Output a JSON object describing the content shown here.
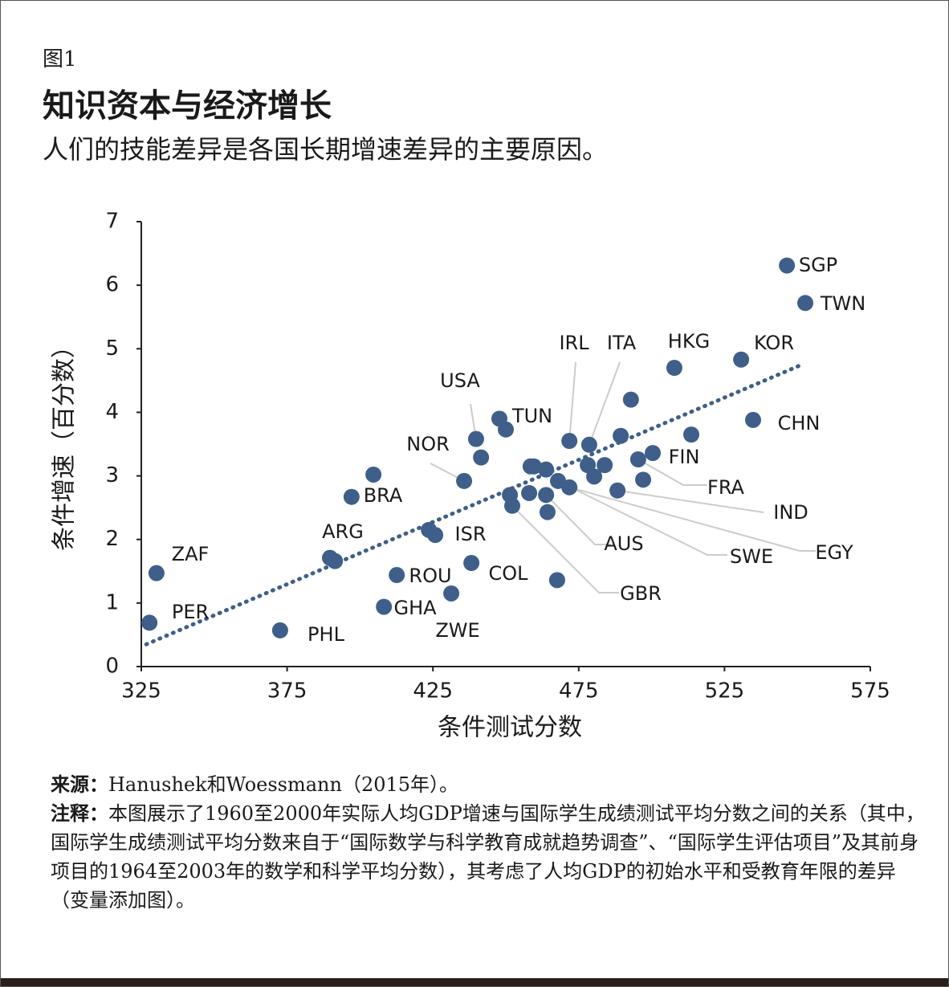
{
  "figure_label": "图1",
  "title": "知识资本与经济增长",
  "subtitle": "人们的技能差异是各国长期增速差异的主要原因。",
  "chart_data": {
    "type": "scatter",
    "xlabel": "条件测试分数",
    "ylabel": "条件增速（百分数）",
    "color": "#3f5f8a",
    "xlim": [
      325,
      575
    ],
    "xticks": [
      325,
      375,
      425,
      475,
      525,
      575
    ],
    "ylim": [
      0,
      7
    ],
    "yticks": [
      0,
      1,
      2,
      3,
      4,
      5,
      6,
      7
    ],
    "series": [
      {
        "x": [
          330.2,
          327.8,
          372.6,
          389.7,
          391.4,
          397.1,
          404.6,
          412.6,
          408.2,
          423.6,
          425.8,
          431.3,
          438.2,
          435.7,
          439.8,
          441.5,
          447.8,
          450.0,
          451.4,
          452.2,
          458.0,
          458.5,
          459.6,
          463.8,
          463.8,
          464.3,
          467.6,
          467.9,
          471.8,
          471.8,
          478.6,
          478.1,
          480.3,
          483.9,
          488.3,
          489.4,
          492.9,
          495.4,
          497.1,
          500.4,
          513.6,
          507.8,
          530.7,
          534.8,
          546.4,
          552.7
        ],
        "values": [
          1.47,
          0.69,
          0.57,
          1.71,
          1.66,
          2.67,
          3.02,
          1.44,
          0.94,
          2.15,
          2.07,
          1.15,
          1.63,
          2.92,
          3.58,
          3.29,
          3.9,
          3.73,
          2.7,
          2.53,
          2.73,
          3.15,
          3.15,
          3.1,
          2.7,
          2.43,
          1.36,
          2.92,
          2.82,
          3.55,
          3.49,
          3.17,
          2.99,
          3.17,
          2.77,
          3.63,
          4.2,
          3.26,
          2.94,
          3.36,
          3.65,
          4.7,
          4.83,
          3.88,
          6.31,
          5.72
        ],
        "point_labels": [
          "ZAF",
          "PER",
          "PHL",
          "ARG",
          null,
          "BRA",
          null,
          "ROU",
          "GHA",
          "ISR",
          null,
          "ZWE",
          "COL",
          "NOR",
          "USA",
          null,
          "TUN",
          null,
          null,
          "GBR",
          null,
          null,
          null,
          null,
          "AUS",
          null,
          null,
          "SWE",
          "EGY",
          "IRL",
          "ITA",
          null,
          null,
          null,
          "IND",
          null,
          null,
          "FRA",
          null,
          "FIN",
          null,
          "HKG",
          "KOR",
          "CHN",
          "SGP",
          "TWN"
        ]
      }
    ],
    "trendline": {
      "x": [
        326.7,
        552
      ],
      "values": [
        0.35,
        4.76
      ]
    }
  },
  "notes": {
    "source_label": "来源：",
    "source": "Hanushek和Woessmann（2015年）。",
    "note_label": "注释：",
    "note": "本图展示了1960至2000年实际人均GDP增速与国际学生成绩测试平均分数之间的关系（其中，国际学生成绩测试平均分数来自于“国际数学与科学教育成就趋势调查”、“国际学生评估项目”及其前身项目的1964至2003年的数学和科学平均分数），其考虑了人均GDP的初始水平和受教育年限的差异（变量添加图）。"
  }
}
